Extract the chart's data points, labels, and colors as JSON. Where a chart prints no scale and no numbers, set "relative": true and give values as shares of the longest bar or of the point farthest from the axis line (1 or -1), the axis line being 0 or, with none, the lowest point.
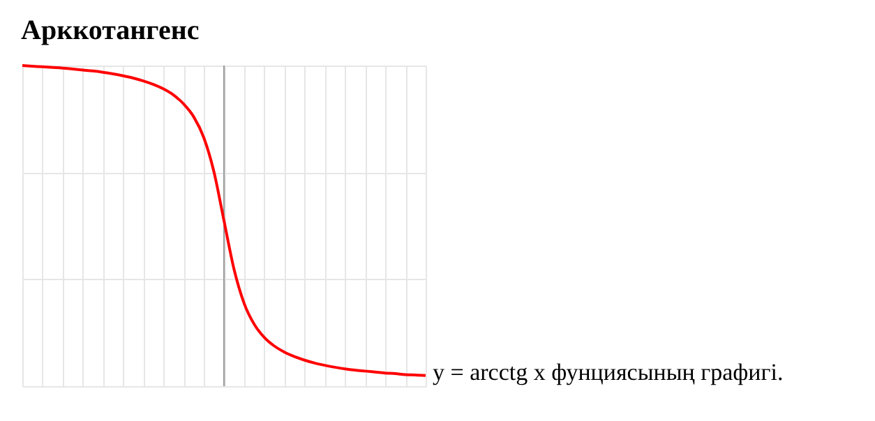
{
  "chart_data": {
    "type": "line",
    "title": "Арккотангенс",
    "relative": true,
    "grid": true,
    "categories": [
      null,
      null,
      null,
      null,
      null,
      null,
      null,
      null,
      null,
      null,
      null,
      null,
      null,
      null,
      null,
      null,
      null,
      null,
      null,
      null,
      null,
      null,
      null,
      null,
      null,
      null,
      null,
      null,
      null,
      null,
      null,
      null,
      null,
      null,
      null,
      null,
      null,
      null,
      null,
      null,
      null
    ],
    "series": [
      {
        "color": "#ff0000",
        "values": [
          1.0,
          0.998,
          0.996,
          0.994,
          0.992,
          0.989,
          0.986,
          0.983,
          0.979,
          0.974,
          0.968,
          0.961,
          0.952,
          0.941,
          0.927,
          0.908,
          0.88,
          0.84,
          0.775,
          0.669,
          0.516,
          0.364,
          0.258,
          0.193,
          0.152,
          0.125,
          0.106,
          0.092,
          0.081,
          0.072,
          0.065,
          0.059,
          0.054,
          0.05,
          0.047,
          0.044,
          0.041,
          0.039,
          0.036,
          0.035,
          0.033
        ]
      }
    ],
    "annotations": [
      "y = arcctg x фунциясының графигі."
    ]
  }
}
